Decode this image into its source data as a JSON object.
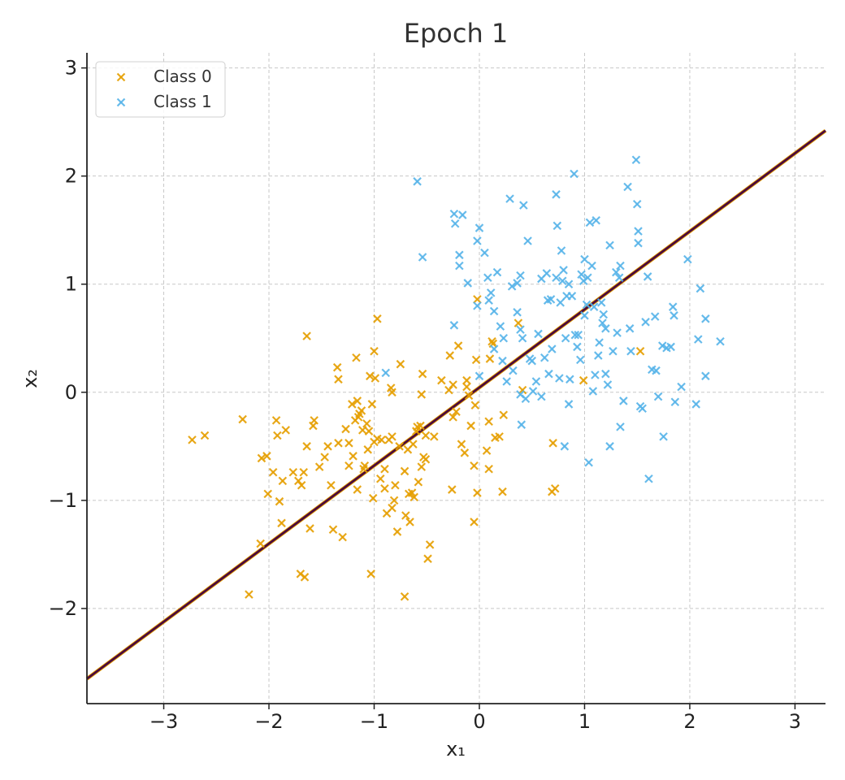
{
  "chart_data": {
    "type": "scatter",
    "title": "Epoch 1",
    "xlabel": "x₁",
    "ylabel": "x₂",
    "xlim": [
      -3.73,
      3.29
    ],
    "ylim": [
      -2.88,
      3.14
    ],
    "xticks": [
      -3,
      -2,
      -1,
      0,
      1,
      2,
      3
    ],
    "yticks": [
      -2,
      -1,
      0,
      1,
      2,
      3
    ],
    "xtick_labels": [
      "−3",
      "−2",
      "−1",
      "0",
      "1",
      "2",
      "3"
    ],
    "ytick_labels": [
      "−2",
      "−1",
      "0",
      "1",
      "2",
      "3"
    ],
    "grid": true,
    "legend_placement": "top-left",
    "marker": "x",
    "decision_boundary": {
      "x": [
        -3.73,
        3.29
      ],
      "y": [
        -2.65,
        2.42
      ],
      "color": "#4b0a3c",
      "edge_color": "#E69F00"
    },
    "series": [
      {
        "name": "Class 0",
        "color": "#E69F00",
        "points": [
          [
            -2.73,
            -0.44
          ],
          [
            -2.61,
            -0.4
          ],
          [
            -2.25,
            -0.25
          ],
          [
            -2.19,
            -1.87
          ],
          [
            -2.08,
            -1.4
          ],
          [
            -2.07,
            -0.61
          ],
          [
            -2.02,
            -0.59
          ],
          [
            -2.01,
            -0.94
          ],
          [
            -1.96,
            -0.74
          ],
          [
            -1.93,
            -0.26
          ],
          [
            -1.92,
            -0.4
          ],
          [
            -1.9,
            -1.01
          ],
          [
            -1.88,
            -1.21
          ],
          [
            -1.87,
            -0.82
          ],
          [
            -1.84,
            -0.35
          ],
          [
            -1.77,
            -0.74
          ],
          [
            -1.72,
            -0.82
          ],
          [
            -1.7,
            -1.68
          ],
          [
            -1.69,
            -0.86
          ],
          [
            -1.67,
            -0.74
          ],
          [
            -1.66,
            -1.71
          ],
          [
            -1.64,
            -0.5
          ],
          [
            -1.64,
            0.52
          ],
          [
            -1.61,
            -1.26
          ],
          [
            -1.58,
            -0.31
          ],
          [
            -1.57,
            -0.26
          ],
          [
            -1.52,
            -0.69
          ],
          [
            -1.47,
            -0.6
          ],
          [
            -1.44,
            -0.5
          ],
          [
            -1.41,
            -0.86
          ],
          [
            -1.39,
            -1.27
          ],
          [
            -1.35,
            0.23
          ],
          [
            -1.34,
            0.12
          ],
          [
            -1.34,
            -0.47
          ],
          [
            -1.3,
            -1.34
          ],
          [
            -1.27,
            -0.34
          ],
          [
            -1.24,
            -0.68
          ],
          [
            -1.24,
            -0.47
          ],
          [
            -1.21,
            -0.11
          ],
          [
            -1.2,
            -0.59
          ],
          [
            -1.18,
            -0.26
          ],
          [
            -1.17,
            0.32
          ],
          [
            -1.16,
            -0.9
          ],
          [
            -1.16,
            -0.08
          ],
          [
            -1.15,
            -0.23
          ],
          [
            -1.14,
            -0.2
          ],
          [
            -1.12,
            -0.17
          ],
          [
            -1.11,
            -0.35
          ],
          [
            -1.1,
            -0.71
          ],
          [
            -1.09,
            -0.68
          ],
          [
            -1.07,
            -0.29
          ],
          [
            -1.06,
            -0.53
          ],
          [
            -1.05,
            -0.36
          ],
          [
            -1.04,
            0.15
          ],
          [
            -1.03,
            -1.68
          ],
          [
            -1.02,
            -0.11
          ],
          [
            -1.01,
            -0.98
          ],
          [
            -1.0,
            0.38
          ],
          [
            -1.0,
            -0.46
          ],
          [
            -0.99,
            0.13
          ],
          [
            -0.97,
            0.68
          ],
          [
            -0.97,
            -0.43
          ],
          [
            -0.94,
            -0.8
          ],
          [
            -0.93,
            -0.44
          ],
          [
            -0.9,
            -0.89
          ],
          [
            -0.9,
            -0.71
          ],
          [
            -0.88,
            -1.12
          ],
          [
            -0.86,
            -0.44
          ],
          [
            -0.84,
            0.04
          ],
          [
            -0.83,
            0.0
          ],
          [
            -0.83,
            -1.07
          ],
          [
            -0.83,
            -0.41
          ],
          [
            -0.81,
            -1.0
          ],
          [
            -0.8,
            -0.86
          ],
          [
            -0.78,
            -1.29
          ],
          [
            -0.76,
            -0.5
          ],
          [
            -0.75,
            0.26
          ],
          [
            -0.71,
            -0.73
          ],
          [
            -0.71,
            -1.89
          ],
          [
            -0.7,
            -1.14
          ],
          [
            -0.68,
            -0.53
          ],
          [
            -0.67,
            -0.94
          ],
          [
            -0.66,
            -1.2
          ],
          [
            -0.64,
            -0.93
          ],
          [
            -0.63,
            -0.48
          ],
          [
            -0.62,
            -0.97
          ],
          [
            -0.6,
            -0.36
          ],
          [
            -0.59,
            -0.32
          ],
          [
            -0.58,
            -0.83
          ],
          [
            -0.56,
            -0.31
          ],
          [
            -0.55,
            -0.69
          ],
          [
            -0.55,
            -0.02
          ],
          [
            -0.54,
            0.17
          ],
          [
            -0.53,
            -0.6
          ],
          [
            -0.51,
            -0.62
          ],
          [
            -0.51,
            -0.4
          ],
          [
            -0.49,
            -1.54
          ],
          [
            -0.47,
            -1.41
          ],
          [
            -0.43,
            -0.41
          ],
          [
            -0.36,
            0.11
          ],
          [
            -0.29,
            0.02
          ],
          [
            -0.28,
            0.34
          ],
          [
            -0.26,
            -0.9
          ],
          [
            -0.25,
            0.07
          ],
          [
            -0.25,
            -0.23
          ],
          [
            -0.22,
            -0.18
          ],
          [
            -0.2,
            0.43
          ],
          [
            -0.17,
            -0.48
          ],
          [
            -0.14,
            -0.56
          ],
          [
            -0.12,
            0.11
          ],
          [
            -0.12,
            0.05
          ],
          [
            -0.1,
            -0.03
          ],
          [
            -0.08,
            -0.31
          ],
          [
            -0.05,
            -0.68
          ],
          [
            -0.04,
            -0.12
          ],
          [
            -0.03,
            0.3
          ],
          [
            -0.02,
            -0.93
          ],
          [
            -0.02,
            0.86
          ],
          [
            -0.05,
            -1.2
          ],
          [
            0.07,
            -0.54
          ],
          [
            0.09,
            -0.27
          ],
          [
            0.09,
            -0.71
          ],
          [
            0.1,
            0.31
          ],
          [
            0.12,
            0.47
          ],
          [
            0.13,
            0.45
          ],
          [
            0.15,
            -0.42
          ],
          [
            0.19,
            -0.41
          ],
          [
            0.22,
            -0.92
          ],
          [
            0.23,
            -0.21
          ],
          [
            0.37,
            0.64
          ],
          [
            0.41,
            0.02
          ],
          [
            0.69,
            -0.92
          ],
          [
            0.7,
            -0.47
          ],
          [
            0.72,
            -0.89
          ],
          [
            0.99,
            0.11
          ],
          [
            1.53,
            0.38
          ]
        ]
      },
      {
        "name": "Class 1",
        "color": "#56B4E9",
        "points": [
          [
            -0.89,
            0.18
          ],
          [
            -0.59,
            1.95
          ],
          [
            -0.54,
            1.25
          ],
          [
            -0.24,
            0.62
          ],
          [
            -0.24,
            1.65
          ],
          [
            -0.23,
            1.56
          ],
          [
            -0.19,
            1.17
          ],
          [
            -0.19,
            1.27
          ],
          [
            -0.16,
            1.64
          ],
          [
            -0.11,
            1.01
          ],
          [
            -0.02,
            0.8
          ],
          [
            -0.02,
            1.4
          ],
          [
            0.0,
            1.52
          ],
          [
            0.0,
            0.15
          ],
          [
            0.05,
            1.29
          ],
          [
            0.08,
            1.06
          ],
          [
            0.09,
            0.85
          ],
          [
            0.11,
            0.92
          ],
          [
            0.14,
            0.75
          ],
          [
            0.17,
            1.11
          ],
          [
            0.2,
            0.61
          ],
          [
            0.22,
            0.29
          ],
          [
            0.23,
            0.5
          ],
          [
            0.26,
            0.1
          ],
          [
            0.29,
            1.79
          ],
          [
            0.31,
            0.98
          ],
          [
            0.32,
            0.2
          ],
          [
            0.36,
            1.01
          ],
          [
            0.36,
            0.74
          ],
          [
            0.39,
            0.58
          ],
          [
            0.39,
            -0.02
          ],
          [
            0.4,
            -0.3
          ],
          [
            0.41,
            0.5
          ],
          [
            0.42,
            1.73
          ],
          [
            0.44,
            -0.06
          ],
          [
            0.46,
            1.4
          ],
          [
            0.48,
            0.31
          ],
          [
            0.5,
            0.29
          ],
          [
            0.56,
            0.54
          ],
          [
            0.59,
            1.05
          ],
          [
            0.59,
            -0.04
          ],
          [
            0.62,
            0.32
          ],
          [
            0.64,
            1.1
          ],
          [
            0.65,
            0.85
          ],
          [
            0.66,
            0.17
          ],
          [
            0.68,
            0.86
          ],
          [
            0.73,
            1.83
          ],
          [
            0.73,
            1.06
          ],
          [
            0.74,
            1.54
          ],
          [
            0.76,
            0.13
          ],
          [
            0.77,
            0.83
          ],
          [
            0.78,
            1.31
          ],
          [
            0.79,
            1.03
          ],
          [
            0.8,
            1.13
          ],
          [
            0.81,
            -0.5
          ],
          [
            0.82,
            0.5
          ],
          [
            0.83,
            0.89
          ],
          [
            0.85,
            -0.11
          ],
          [
            0.86,
            0.12
          ],
          [
            0.88,
            0.89
          ],
          [
            0.9,
            2.02
          ],
          [
            0.91,
            0.53
          ],
          [
            0.93,
            0.42
          ],
          [
            0.94,
            0.53
          ],
          [
            0.96,
            0.3
          ],
          [
            0.97,
            1.09
          ],
          [
            0.99,
            1.03
          ],
          [
            1.0,
            0.71
          ],
          [
            1.02,
            0.81
          ],
          [
            1.03,
            1.06
          ],
          [
            1.04,
            -0.65
          ],
          [
            1.05,
            1.57
          ],
          [
            1.07,
            1.17
          ],
          [
            1.08,
            0.01
          ],
          [
            1.09,
            0.79
          ],
          [
            1.1,
            0.16
          ],
          [
            1.11,
            1.59
          ],
          [
            1.13,
            0.34
          ],
          [
            1.14,
            0.46
          ],
          [
            1.17,
            0.64
          ],
          [
            1.18,
            0.72
          ],
          [
            1.2,
            0.59
          ],
          [
            1.22,
            0.07
          ],
          [
            1.24,
            -0.5
          ],
          [
            1.24,
            1.36
          ],
          [
            1.27,
            0.38
          ],
          [
            1.3,
            1.11
          ],
          [
            1.33,
            1.06
          ],
          [
            1.34,
            -0.32
          ],
          [
            1.34,
            1.17
          ],
          [
            1.37,
            -0.08
          ],
          [
            1.41,
            1.9
          ],
          [
            1.43,
            0.59
          ],
          [
            1.44,
            0.38
          ],
          [
            1.49,
            2.15
          ],
          [
            1.5,
            1.74
          ],
          [
            1.51,
            1.38
          ],
          [
            1.51,
            1.49
          ],
          [
            1.53,
            -0.13
          ],
          [
            1.55,
            -0.15
          ],
          [
            1.58,
            0.65
          ],
          [
            1.6,
            1.07
          ],
          [
            1.61,
            -0.8
          ],
          [
            1.64,
            0.21
          ],
          [
            1.67,
            0.7
          ],
          [
            1.68,
            0.2
          ],
          [
            1.7,
            -0.04
          ],
          [
            1.74,
            0.43
          ],
          [
            1.75,
            -0.41
          ],
          [
            1.78,
            0.41
          ],
          [
            1.82,
            0.42
          ],
          [
            1.84,
            0.79
          ],
          [
            1.85,
            0.71
          ],
          [
            1.86,
            -0.09
          ],
          [
            1.92,
            0.05
          ],
          [
            1.98,
            1.23
          ],
          [
            2.06,
            -0.11
          ],
          [
            2.08,
            0.49
          ],
          [
            2.1,
            0.96
          ],
          [
            2.15,
            0.15
          ],
          [
            2.15,
            0.68
          ],
          [
            2.29,
            0.47
          ],
          [
            1.2,
            0.17
          ],
          [
            0.51,
            0.01
          ],
          [
            0.14,
            0.4
          ],
          [
            0.69,
            0.4
          ],
          [
            0.85,
            1.0
          ],
          [
            1.0,
            1.23
          ],
          [
            1.16,
            0.83
          ],
          [
            0.39,
            1.08
          ],
          [
            0.54,
            0.1
          ],
          [
            1.31,
            0.55
          ]
        ]
      }
    ]
  }
}
